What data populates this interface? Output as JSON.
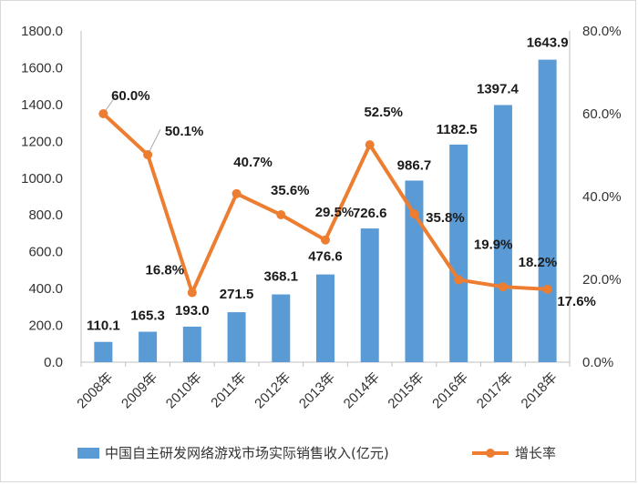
{
  "chart_data": {
    "type": "bar+line",
    "categories": [
      "2008年",
      "2009年",
      "2010年",
      "2011年",
      "2012年",
      "2013年",
      "2014年",
      "2015年",
      "2016年",
      "2017年",
      "2018年"
    ],
    "series": [
      {
        "name": "中国自主研发网络游戏市场实际销售收入(亿元)",
        "type": "bar",
        "axis": "left",
        "values": [
          110.1,
          165.3,
          193.0,
          271.5,
          368.1,
          476.6,
          726.6,
          986.7,
          1182.5,
          1397.4,
          1643.9
        ],
        "labels": [
          "110.1",
          "165.3",
          "193.0",
          "271.5",
          "368.1",
          "476.6",
          "726.6",
          "986.7",
          "1182.5",
          "1397.4",
          "1643.9"
        ],
        "color": "#5b9bd5"
      },
      {
        "name": "增长率",
        "type": "line",
        "axis": "right",
        "values": [
          60.0,
          50.1,
          16.8,
          40.7,
          35.6,
          29.5,
          52.5,
          35.8,
          19.9,
          18.2,
          17.6
        ],
        "labels": [
          "60.0%",
          "50.1%",
          "16.8%",
          "40.7%",
          "35.6%",
          "29.5%",
          "52.5%",
          "35.8%",
          "19.9%",
          "18.2%",
          "17.6%"
        ],
        "color": "#ed7d31"
      }
    ],
    "left_axis": {
      "ylim": [
        0,
        1800
      ],
      "ticks": [
        "0.0",
        "200.0",
        "400.0",
        "600.0",
        "800.0",
        "1000.0",
        "1200.0",
        "1400.0",
        "1600.0",
        "1800.0"
      ]
    },
    "right_axis": {
      "ylim": [
        0,
        80
      ],
      "ticks": [
        "0.0%",
        "20.0%",
        "40.0%",
        "60.0%",
        "80.0%"
      ]
    },
    "grid": false,
    "legend_position": "bottom"
  }
}
